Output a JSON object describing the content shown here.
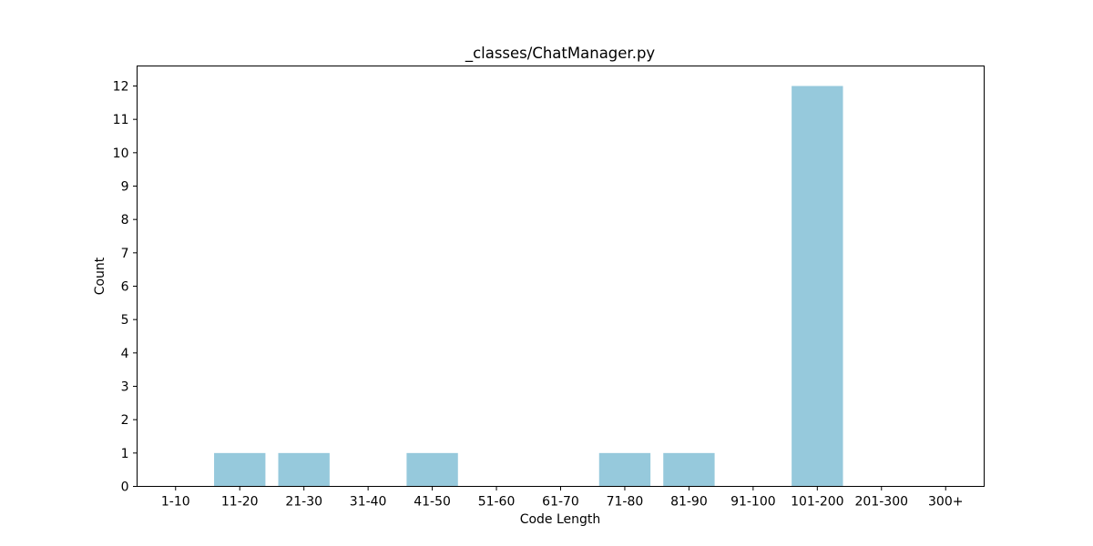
{
  "chart_data": {
    "type": "bar",
    "title": "_classes/ChatManager.py",
    "xlabel": "Code Length",
    "ylabel": "Count",
    "categories": [
      "1-10",
      "11-20",
      "21-30",
      "31-40",
      "41-50",
      "51-60",
      "61-70",
      "71-80",
      "81-90",
      "91-100",
      "101-200",
      "201-300",
      "300+"
    ],
    "values": [
      0,
      1,
      1,
      0,
      1,
      0,
      0,
      1,
      1,
      0,
      12,
      0,
      0
    ],
    "ylim": [
      0,
      12.6
    ],
    "yticks": [
      "0",
      "1",
      "2",
      "3",
      "4",
      "5",
      "6",
      "7",
      "8",
      "9",
      "10",
      "11",
      "12"
    ],
    "bar_color": "#96c9dc",
    "grid": false,
    "legend": "none"
  }
}
